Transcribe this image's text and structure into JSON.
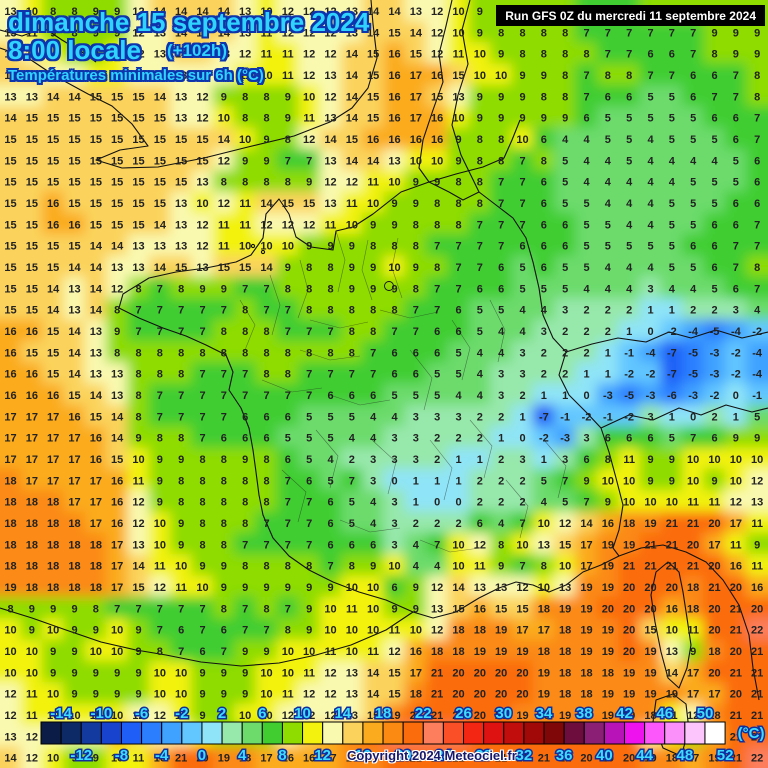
{
  "header": {
    "date_line": "dimanche 15 septembre 2024",
    "time_line": "8:00 locale",
    "offset_label": "(+102h)",
    "subtitle": "Températures minimales sur 6h (°C)"
  },
  "run_info": "Run GFS 0Z du mercredi 11 septembre 2024",
  "copyright": "Copyright 2024 Meteociel.fr",
  "colors": {
    "header_text": "#2fd3ff",
    "header_outline": "#0f35ad",
    "run_box_bg": "#000000",
    "run_box_text": "#ffffff",
    "number_color": "#222222",
    "copyright_text": "#17176b"
  },
  "scale": {
    "unit_label": "(°C)",
    "min": -16,
    "max": 52,
    "step": 2,
    "labels_above": [
      -14,
      -10,
      -6,
      -2,
      2,
      6,
      10,
      14,
      18,
      22,
      26,
      30,
      34,
      38,
      42,
      46,
      50
    ],
    "labels_below": [
      -12,
      -8,
      -4,
      0,
      4,
      8,
      12,
      16,
      20,
      24,
      28,
      32,
      36,
      40,
      44,
      48,
      52
    ],
    "palette": [
      "#0b1d47",
      "#0e2a66",
      "#123a9f",
      "#1743cf",
      "#1f5ef7",
      "#2b7fff",
      "#40a2ff",
      "#62c6ff",
      "#8fe4f7",
      "#97e8ab",
      "#6cdb6c",
      "#41cd30",
      "#8edc00",
      "#f2f20e",
      "#f9f9b0",
      "#fbd35c",
      "#fbab1e",
      "#fb8a12",
      "#fb6c0d",
      "#fc7e5d",
      "#fb4f28",
      "#f32513",
      "#df1212",
      "#c20d0d",
      "#a10909",
      "#7f0707",
      "#6d0d3d",
      "#8a1f75",
      "#b813b8",
      "#ee12ee",
      "#fb57fb",
      "#fb90fb",
      "#fcc5fc",
      "#ffffff"
    ]
  },
  "map_grid": {
    "cols": 36,
    "rows": 36,
    "rows_values": [
      "13 10 8 8 9 9 12 14 14 14 14 13 10 12 12 12 13 14 14 13 12 10 9 8 8 8 8 7 7 7 8 8 8 9 9 9",
      "13 11 9 8 9 9 12 13 14 14 14 13 11 12 12 12 13 14 15 14 12 10 9 8 8 8 8 7 7 7 7 7 7 9 9 9",
      "14 13 11 9 9 10 12 13 14 14 13 12 11 11 12 12 14 15 16 15 12 11 10 9 8 8 8 8 7 7 6 6 7 8 9 9",
      "15 14 13 12 11 11 12 13 13 13 12 11 10 11 12 13 14 15 16 17 16 15 10 10 9 9 8 7 8 8 7 7 6 6 7 8",
      "13 13 14 14 15 15 15 14 13 12 9 8 8 9 10 12 14 15 16 17 15 13 9 9 9 8 8 7 6 6 5 5 6 7 7 8",
      "14 15 15 15 15 15 15 15 13 12 10 8 8 9 11 13 14 15 16 17 16 10 9 9 9 9 9 6 5 5 5 5 5 6 6 7",
      "15 15 15 15 15 15 15 15 15 15 14 10 9 8 12 14 15 16 16 16 16 9 8 8 10 6 4 4 5 5 4 5 5 5 6 7",
      "15 15 15 15 15 15 15 15 15 15 12 9 9 7 7 13 14 14 13 10 10 9 8 8 7 8 5 4 4 5 4 4 4 4 5 6",
      "15 15 15 15 15 15 15 15 15 13 8 8 8 8 9 12 12 11 10 9 9 8 8 7 7 6 5 4 4 4 4 4 5 5 5 6",
      "15 15 16 15 15 15 15 15 13 10 12 11 14 15 15 13 11 10 9 9 8 8 8 7 7 6 5 5 4 4 4 5 5 5 6 6",
      "15 15 16 16 15 15 15 14 13 12 11 11 12 12 12 11 10 9 9 8 8 8 7 7 7 6 6 5 5 4 4 5 5 6 6 7",
      "15 15 15 15 14 14 13 13 13 12 11 10 10 10 9 9 9 8 8 8 7 7 7 7 6 6 6 5 5 5 5 5 6 6 7 7",
      "15 15 15 14 14 13 13 14 15 13 15 15 14 9 8 8 9 9 10 9 8 7 7 6 5 6 5 5 4 4 4 5 5 6 7 8",
      "15 15 14 13 14 12 8 7 8 9 9 7 7 8 8 8 9 9 9 8 7 7 6 6 5 5 5 4 4 4 3 4 4 5 6 7",
      "15 15 14 13 14 8 7 7 7 7 7 8 7 7 8 8 8 8 8 7 7 6 5 5 4 4 3 2 2 2 1 1 2 2 3 4",
      "16 16 15 14 13 9 7 7 7 7 8 8 8 7 7 7 8 8 7 7 6 6 5 4 4 3 2 2 2 1 0 -2 -4 -5 -4 -2",
      "16 15 15 14 13 8 8 8 8 8 8 8 8 8 8 8 8 7 6 6 6 5 4 4 3 2 2 2 1 -1 -4 -7 -5 -3 -2 -4",
      "16 16 15 14 13 13 8 8 8 7 7 7 8 8 7 7 7 7 6 6 5 5 4 3 3 2 2 1 1 -2 -2 -7 -5 -3 -2 -4",
      "16 16 16 15 14 13 8 7 7 7 7 7 7 7 7 6 6 6 5 5 5 4 4 3 2 1 1 0 -3 -5 -3 -6 -3 -2 0 -1",
      "17 17 17 16 15 14 8 7 7 7 7 6 6 6 5 5 5 4 4 3 3 3 2 2 1 -7 -1 -2 -1 -2 3 1 0 2 1 5",
      "17 17 17 17 16 14 9 8 8 7 6 6 6 5 5 5 4 4 3 3 2 2 2 1 0 -2 -3 3 6 6 6 5 7 6 9 9",
      "17 17 17 17 16 15 10 9 9 8 8 9 8 6 5 4 2 3 3 3 2 1 1 2 3 1 3 6 8 11 9 9 10 10 10 10",
      "18 17 17 17 17 16 11 9 8 8 8 8 8 7 6 5 7 3 0 1 1 1 2 2 2 5 7 9 10 10 9 9 10 9 10 12",
      "18 18 18 17 17 16 12 9 8 8 8 8 8 7 7 6 5 4 3 1 0 0 2 2 2 4 5 7 9 10 10 10 11 11 12 13",
      "18 18 18 18 17 16 12 10 9 8 8 8 7 7 7 6 5 4 3 2 2 2 6 4 7 10 12 14 16 18 19 21 21 20 17 11",
      "18 18 18 18 18 17 13 10 9 8 8 7 7 7 7 6 6 6 3 4 7 10 12 8 10 13 15 17 19 19 21 21 20 17 11 9",
      "18 18 18 18 18 17 14 11 10 9 9 8 8 8 8 7 8 9 10 4 4 10 11 9 7 8 10 17 19 21 21 21 21 20 16 11",
      "19 18 18 18 18 17 15 12 11 10 9 9 9 9 9 9 10 10 6 9 12 14 13 13 12 10 13 19 19 20 20 20 18 21 20 16",
      "8 9 9 9 8 7 7 7 7 7 8 7 8 7 9 10 11 10 9 9 13 15 16 15 15 18 19 19 20 20 20 16 18 20 21 20",
      "10 9 10 9 9 10 9 7 6 7 6 7 7 8 9 10 10 10 11 10 12 18 18 19 17 17 18 19 19 20 15 10 11 20 21 22",
      "10 10 9 9 10 10 9 8 7 6 7 9 9 10 10 11 10 11 12 16 18 18 19 19 19 18 18 19 19 20 19 13 9 18 20 21",
      "10 10 9 9 9 9 9 10 10 9 9 9 10 10 11 12 13 14 15 17 21 20 20 20 20 19 18 18 18 19 19 14 17 20 21 21",
      "12 11 10 9 9 9 9 10 10 9 9 9 10 11 12 12 13 14 15 18 21 20 20 20 20 19 18 18 19 19 19 19 17 17 20 21",
      "12 11 10 10 10 10 12 12 10 9 9 10 10 12 12 12 13 15 19 21 21 20 20 20 19 18 19 19 19 19 18 11 12 18 21 21",
      "13 12 12 12 13 16 15 13 12 10 9 9 9 12 14 16 18 20 22 22 22 22 21 21 21 21 20 20 20 20 13 10 9 17 21 21",
      "14 12 10 9 9 10 11 16 21 20 19 18 17 16 16 17 18 19 21 21 21 21 21 21 21 21 21 20 20 20 19 18 17 19 21 22"
    ]
  }
}
